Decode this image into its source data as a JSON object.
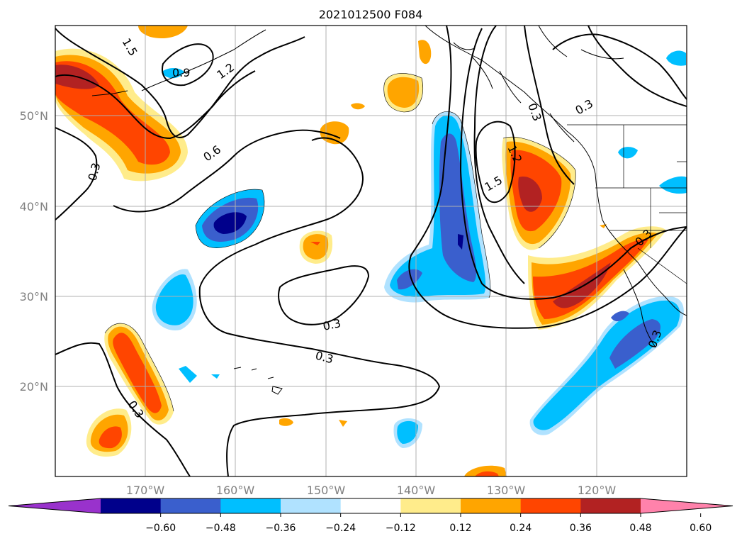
{
  "title": "2021012500 F084",
  "map": {
    "lat_ticks": [
      "50°N",
      "40°N",
      "30°N",
      "20°N"
    ],
    "lon_ticks": [
      "170°W",
      "160°W",
      "150°W",
      "140°W",
      "130°W",
      "120°W"
    ],
    "grid": true,
    "contour_labels": [
      "1.5",
      "0.9",
      "1.2",
      "0.6",
      "0.3",
      "0.3",
      "0.3",
      "0.3",
      "1.2",
      "1.5",
      "0.3",
      "0.3",
      "0.3",
      "0.3"
    ]
  },
  "colorbar": {
    "ticks": [
      "−0.60",
      "−0.48",
      "−0.36",
      "−0.24",
      "−0.12",
      "0.12",
      "0.24",
      "0.36",
      "0.48",
      "0.60"
    ],
    "colors": [
      "#9932cc",
      "#00008b",
      "#3a5fcd",
      "#00bfff",
      "#b0e2ff",
      "#ffffff",
      "#ffec8b",
      "#ffa500",
      "#ff4500",
      "#b22222",
      "#ff82ab"
    ],
    "extend": "both"
  }
}
